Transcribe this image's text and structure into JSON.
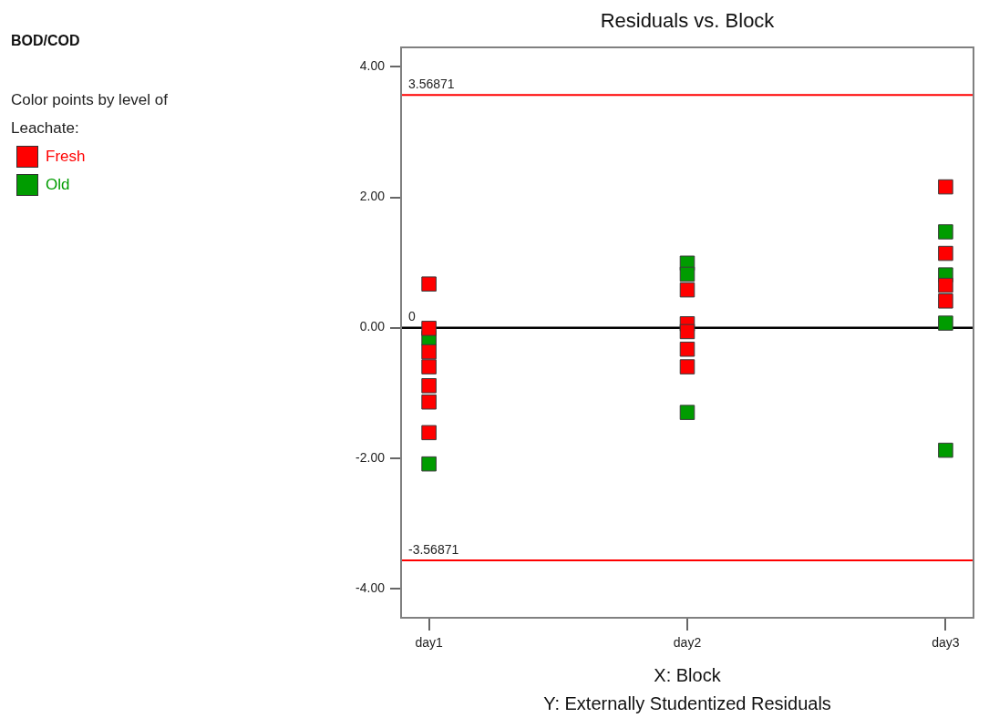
{
  "chart_data": {
    "type": "scatter",
    "title": "Residuals vs. Block",
    "xlabel": "X: Block\nY: Externally Studentized Residuals",
    "legend_title": "Color points by level of Leachate:",
    "annotations": [
      "BOD/COD"
    ],
    "categories": [
      "day1",
      "day2",
      "day3"
    ],
    "series": [
      {
        "name": "Fresh",
        "color": "#ff0000",
        "x": [
          "day1",
          "day1",
          "day1",
          "day1",
          "day1",
          "day1",
          "day1",
          "day2",
          "day2",
          "day2",
          "day2",
          "day2",
          "day3",
          "day3",
          "day3",
          "day3"
        ],
        "values": [
          0.67,
          -0.01,
          -0.37,
          -0.6,
          -0.89,
          -1.14,
          -1.61,
          0.58,
          0.06,
          -0.06,
          -0.33,
          -0.6,
          2.16,
          1.14,
          0.65,
          0.41
        ]
      },
      {
        "name": "Old",
        "color": "#009c00",
        "x": [
          "day1",
          "day1",
          "day2",
          "day2",
          "day2",
          "day3",
          "day3",
          "day3",
          "day3"
        ],
        "values": [
          -0.16,
          -2.09,
          0.99,
          0.82,
          -1.3,
          1.47,
          0.81,
          0.07,
          -1.88
        ]
      }
    ],
    "ylim": [
      -4.45,
      4.3
    ],
    "yticks": [
      {
        "value": -4,
        "label": "-4.00"
      },
      {
        "value": -2,
        "label": "-2.00"
      },
      {
        "value": 0,
        "label": "0.00"
      },
      {
        "value": 2,
        "label": "2.00"
      },
      {
        "value": 4,
        "label": "4.00"
      }
    ],
    "ref_lines": [
      {
        "axis": "y",
        "value": 3.56871,
        "label": "3.56871",
        "color": "#ff0000"
      },
      {
        "axis": "y",
        "value": 0,
        "label": "0",
        "color": "#000000"
      },
      {
        "axis": "y",
        "value": -3.56871,
        "label": "-3.56871",
        "color": "#ff0000"
      }
    ],
    "marker": "square",
    "legend": "top left"
  }
}
